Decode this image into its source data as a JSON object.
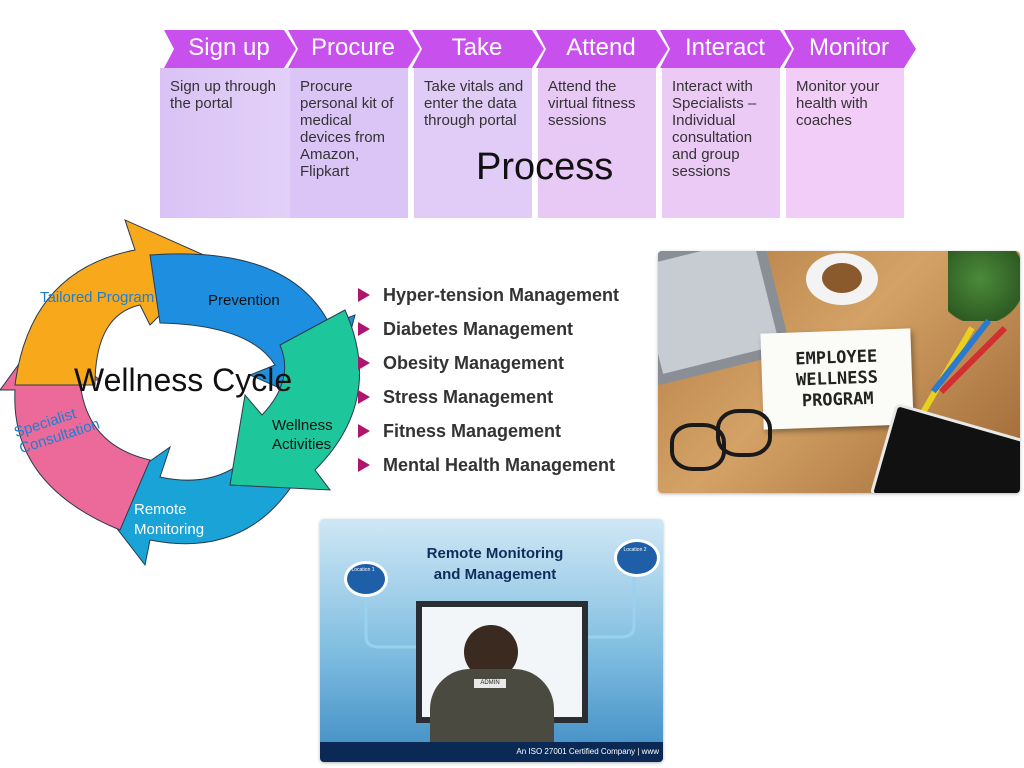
{
  "process": {
    "title": "Process",
    "steps": [
      {
        "label": "Sign up",
        "desc": "Sign up through the portal"
      },
      {
        "label": "Procure",
        "desc": "Procure personal kit of medical devices from Amazon, Flipkart"
      },
      {
        "label": "Take",
        "desc": "Take vitals and enter the data through portal"
      },
      {
        "label": "Attend",
        "desc": "Attend the virtual fitness sessions"
      },
      {
        "label": "Interact",
        "desc": "Interact with Specialists – Individual consultation and group sessions"
      },
      {
        "label": "Monitor",
        "desc": "Monitor your health with coaches"
      }
    ],
    "colors": {
      "chevron": "#c850ec",
      "card_light": "#dcc7f7",
      "card_pink": "#f2cdf7"
    }
  },
  "cycle": {
    "title": "Wellness Cycle",
    "segments": [
      {
        "label": "Tailored Program",
        "color": "#f7a81b"
      },
      {
        "label": "Prevention",
        "color": "#1e8fe0"
      },
      {
        "label": "Wellness Activities",
        "color": "#1ec79b"
      },
      {
        "label": "Remote Monitoring",
        "color": "#1aa3d6"
      },
      {
        "label": "Specialist Consultation",
        "color": "#ec6a9a"
      }
    ]
  },
  "programs": {
    "items": [
      "Hyper-tension Management",
      "Diabetes Management",
      "Obesity Management",
      "Stress Management",
      "Fitness Management",
      "Mental Health Management"
    ]
  },
  "photo_wellness": {
    "note_lines": [
      "EMPLOYEE",
      "WELLNESS",
      "PROGRAM"
    ]
  },
  "photo_remote": {
    "title_lines": [
      "Remote Monitoring",
      "and Management"
    ],
    "location_left": "Location 1",
    "location_right": "Location 2",
    "admin_label": "ADMIN",
    "footer": "An ISO 27001 Certified Company | www"
  }
}
